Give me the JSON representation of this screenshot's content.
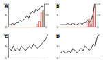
{
  "chart_data": [
    {
      "type": "line",
      "title": "A",
      "categories": [
        null,
        null,
        null,
        null,
        null,
        null,
        null,
        null,
        null,
        null,
        null,
        null,
        null,
        null,
        null,
        null,
        null,
        null,
        null,
        null
      ],
      "series": [
        {
          "type": "bar",
          "axis": "y2",
          "color": "#c0392b",
          "values": [
            0,
            0,
            0,
            0,
            0,
            0,
            0,
            0,
            0,
            0,
            0,
            0,
            0,
            0,
            0,
            0,
            5,
            10,
            25,
            30
          ]
        },
        {
          "type": "line",
          "color": "#222222",
          "values": [
            1,
            1,
            1.5,
            1,
            2,
            2,
            3,
            2.5,
            3,
            4,
            5,
            4,
            6,
            7,
            6,
            8,
            7,
            8,
            9,
            9
          ]
        }
      ],
      "ylim": [
        0,
        10
      ],
      "yticks": [
        0,
        5,
        10
      ],
      "y2lim": [
        0,
        40
      ],
      "y2ticks": [
        0,
        20,
        40
      ],
      "grid": false
    },
    {
      "type": "line",
      "title": "B",
      "categories": [
        null,
        null,
        null,
        null,
        null,
        null,
        null,
        null,
        null,
        null,
        null,
        null,
        null,
        null,
        null,
        null,
        null,
        null,
        null,
        null
      ],
      "series": [
        {
          "type": "bar",
          "axis": "y2",
          "color": "#c0392b",
          "values": [
            0,
            0,
            0,
            0,
            0,
            0,
            0,
            0,
            0,
            0,
            0,
            0,
            0,
            0,
            0,
            8,
            15,
            5,
            20,
            35
          ]
        },
        {
          "type": "line",
          "color": "#222222",
          "values": [
            1,
            1,
            1,
            1,
            1.5,
            1,
            1,
            2,
            1,
            1,
            1.5,
            2,
            1,
            2,
            2,
            3,
            2,
            3,
            5,
            10
          ]
        }
      ],
      "ylim": [
        0,
        10
      ],
      "yticks": [
        0,
        5,
        10
      ],
      "y2lim": [
        0,
        40
      ],
      "y2ticks": [
        0,
        20,
        40
      ],
      "grid": false
    },
    {
      "type": "line",
      "title": "C",
      "categories": [
        null,
        null,
        null,
        null,
        null,
        null,
        null,
        null,
        null,
        null,
        null,
        null,
        null,
        null,
        null,
        null,
        null,
        null,
        null,
        null
      ],
      "series": [
        {
          "type": "line",
          "color": "#222222",
          "values": [
            4,
            3,
            5,
            3,
            4,
            3,
            5,
            4,
            3,
            4,
            5,
            4,
            6,
            5,
            4,
            5,
            6,
            7,
            8,
            10
          ]
        }
      ],
      "ylim": [
        0,
        10
      ],
      "yticks": [
        0,
        5,
        10
      ],
      "grid": false
    },
    {
      "type": "line",
      "title": "D",
      "categories": [
        null,
        null,
        null,
        null,
        null,
        null,
        null,
        null,
        null,
        null,
        null,
        null,
        null,
        null,
        null,
        null,
        null,
        null,
        null,
        null
      ],
      "series": [
        {
          "type": "line",
          "color": "#222222",
          "values": [
            2,
            3,
            2,
            2,
            3,
            2,
            4,
            3,
            2,
            3,
            4,
            3,
            5,
            4,
            3,
            4,
            6,
            5,
            9,
            10
          ]
        }
      ],
      "ylim": [
        0,
        10
      ],
      "yticks": [
        0,
        5,
        10
      ],
      "grid": false
    }
  ]
}
